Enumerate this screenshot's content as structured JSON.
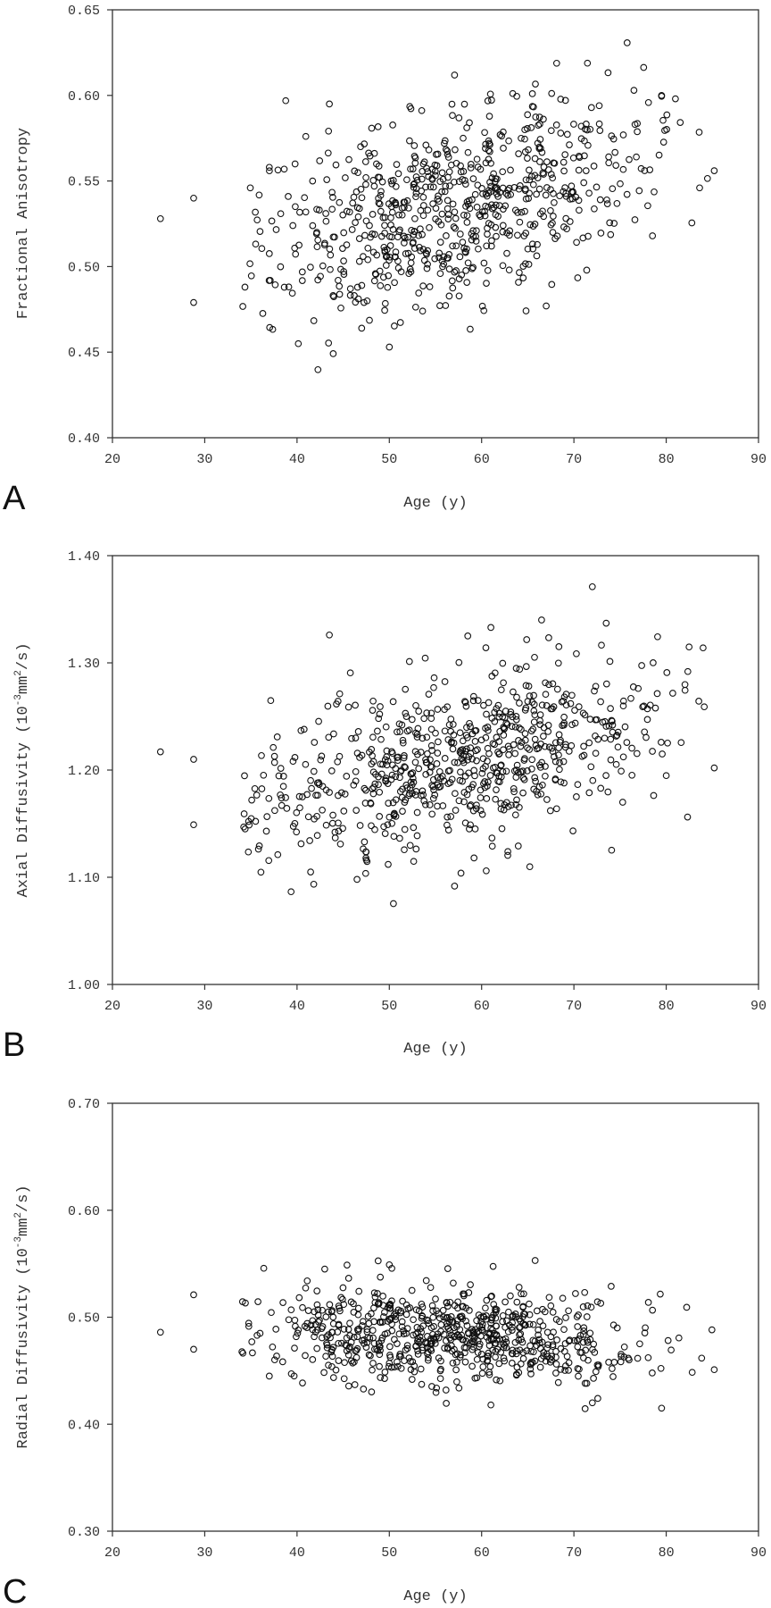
{
  "chart_data": [
    {
      "type": "scatter",
      "panel": "A",
      "xlabel": "Age (y)",
      "ylabel": "Fractional Anisotropy",
      "xlim": [
        20,
        90
      ],
      "ylim": [
        0.4,
        0.65
      ],
      "xticks": [
        "20",
        "30",
        "40",
        "50",
        "60",
        "70",
        "80",
        "90"
      ],
      "yticks": [
        "0.40",
        "0.45",
        "0.50",
        "0.55",
        "0.60",
        "0.65"
      ],
      "grid": false,
      "n_points": 720,
      "seed": 11,
      "x": [
        25.2,
        28.8,
        28.8,
        37.0,
        43.5,
        50.0,
        65.5,
        76.5,
        79.5,
        81.0,
        85.2,
        47.0,
        58.0,
        67.0
      ],
      "y": [
        0.528,
        0.54,
        0.479,
        0.558,
        0.595,
        0.453,
        0.601,
        0.603,
        0.6,
        0.598,
        0.556,
        0.464,
        0.575,
        0.477
      ]
    },
    {
      "type": "scatter",
      "panel": "B",
      "xlabel": "Age (y)",
      "ylabel": "Axial Diffusivity (10^-3 mm^2/s)",
      "ylabel_parts": [
        "Axial Diffusivity (10",
        "-3",
        "mm",
        "2",
        "/s)"
      ],
      "xlim": [
        20,
        90
      ],
      "ylim": [
        1.0,
        1.4
      ],
      "xticks": [
        "20",
        "30",
        "40",
        "50",
        "60",
        "70",
        "80",
        "90"
      ],
      "yticks": [
        "1.00",
        "1.10",
        "1.20",
        "1.30",
        "1.40"
      ],
      "grid": false,
      "n_points": 720,
      "seed": 23,
      "x": [
        25.2,
        28.8,
        28.8,
        43.5,
        46.5,
        61.0,
        66.5,
        72.0,
        73.5,
        84.0,
        85.2,
        60.5
      ],
      "y": [
        1.217,
        1.21,
        1.149,
        1.326,
        1.098,
        1.333,
        1.34,
        1.371,
        1.337,
        1.314,
        1.202,
        1.106
      ]
    },
    {
      "type": "scatter",
      "panel": "C",
      "xlabel": "Age (y)",
      "ylabel": "Radial Diffusivity (10^-3 mm^2/s)",
      "ylabel_parts": [
        "Radial Diffusivity (10",
        "-3",
        "mm",
        "2",
        "/s)"
      ],
      "xlim": [
        20,
        90
      ],
      "ylim": [
        0.3,
        0.7
      ],
      "xticks": [
        "20",
        "30",
        "40",
        "50",
        "60",
        "70",
        "80",
        "90"
      ],
      "yticks": [
        "0.30",
        "0.40",
        "0.50",
        "0.60",
        "0.70"
      ],
      "grid": false,
      "n_points": 720,
      "seed": 37,
      "x": [
        25.2,
        28.8,
        28.8,
        37.0,
        50.0,
        65.8,
        79.5,
        85.2,
        61.0,
        72.0,
        43.0
      ],
      "y": [
        0.486,
        0.521,
        0.47,
        0.445,
        0.549,
        0.553,
        0.415,
        0.451,
        0.418,
        0.42,
        0.545
      ]
    }
  ]
}
